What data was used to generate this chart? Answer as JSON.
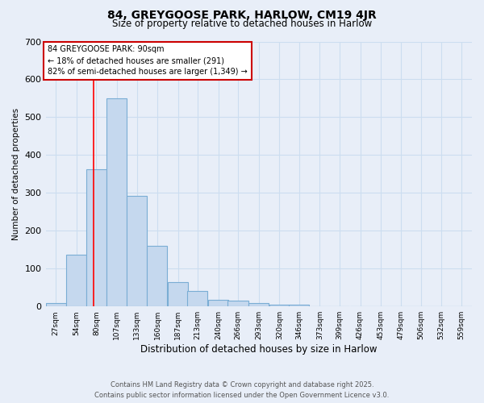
{
  "title_line1": "84, GREYGOOSE PARK, HARLOW, CM19 4JR",
  "title_line2": "Size of property relative to detached houses in Harlow",
  "xlabel": "Distribution of detached houses by size in Harlow",
  "ylabel": "Number of detached properties",
  "bins": [
    "27sqm",
    "54sqm",
    "80sqm",
    "107sqm",
    "133sqm",
    "160sqm",
    "187sqm",
    "213sqm",
    "240sqm",
    "266sqm",
    "293sqm",
    "320sqm",
    "346sqm",
    "373sqm",
    "399sqm",
    "426sqm",
    "453sqm",
    "479sqm",
    "506sqm",
    "532sqm",
    "559sqm"
  ],
  "bin_edges": [
    27,
    54,
    80,
    107,
    133,
    160,
    187,
    213,
    240,
    266,
    293,
    320,
    346,
    373,
    399,
    426,
    453,
    479,
    506,
    532,
    559
  ],
  "values": [
    10,
    137,
    362,
    550,
    293,
    160,
    65,
    40,
    18,
    15,
    8,
    5,
    5,
    0,
    0,
    0,
    0,
    0,
    0,
    0,
    0
  ],
  "bar_color": "#c5d8ee",
  "bar_edge_color": "#7aadd4",
  "grid_color": "#ccddf0",
  "red_line_x": 90,
  "annotation_text": "84 GREYGOOSE PARK: 90sqm\n← 18% of detached houses are smaller (291)\n82% of semi-detached houses are larger (1,349) →",
  "annotation_box_color": "#ffffff",
  "annotation_box_edge": "#cc0000",
  "ylim": [
    0,
    700
  ],
  "yticks": [
    0,
    100,
    200,
    300,
    400,
    500,
    600,
    700
  ],
  "footer_line1": "Contains HM Land Registry data © Crown copyright and database right 2025.",
  "footer_line2": "Contains public sector information licensed under the Open Government Licence v3.0.",
  "bg_color": "#e8eef8",
  "plot_bg_color": "#e8eef8"
}
